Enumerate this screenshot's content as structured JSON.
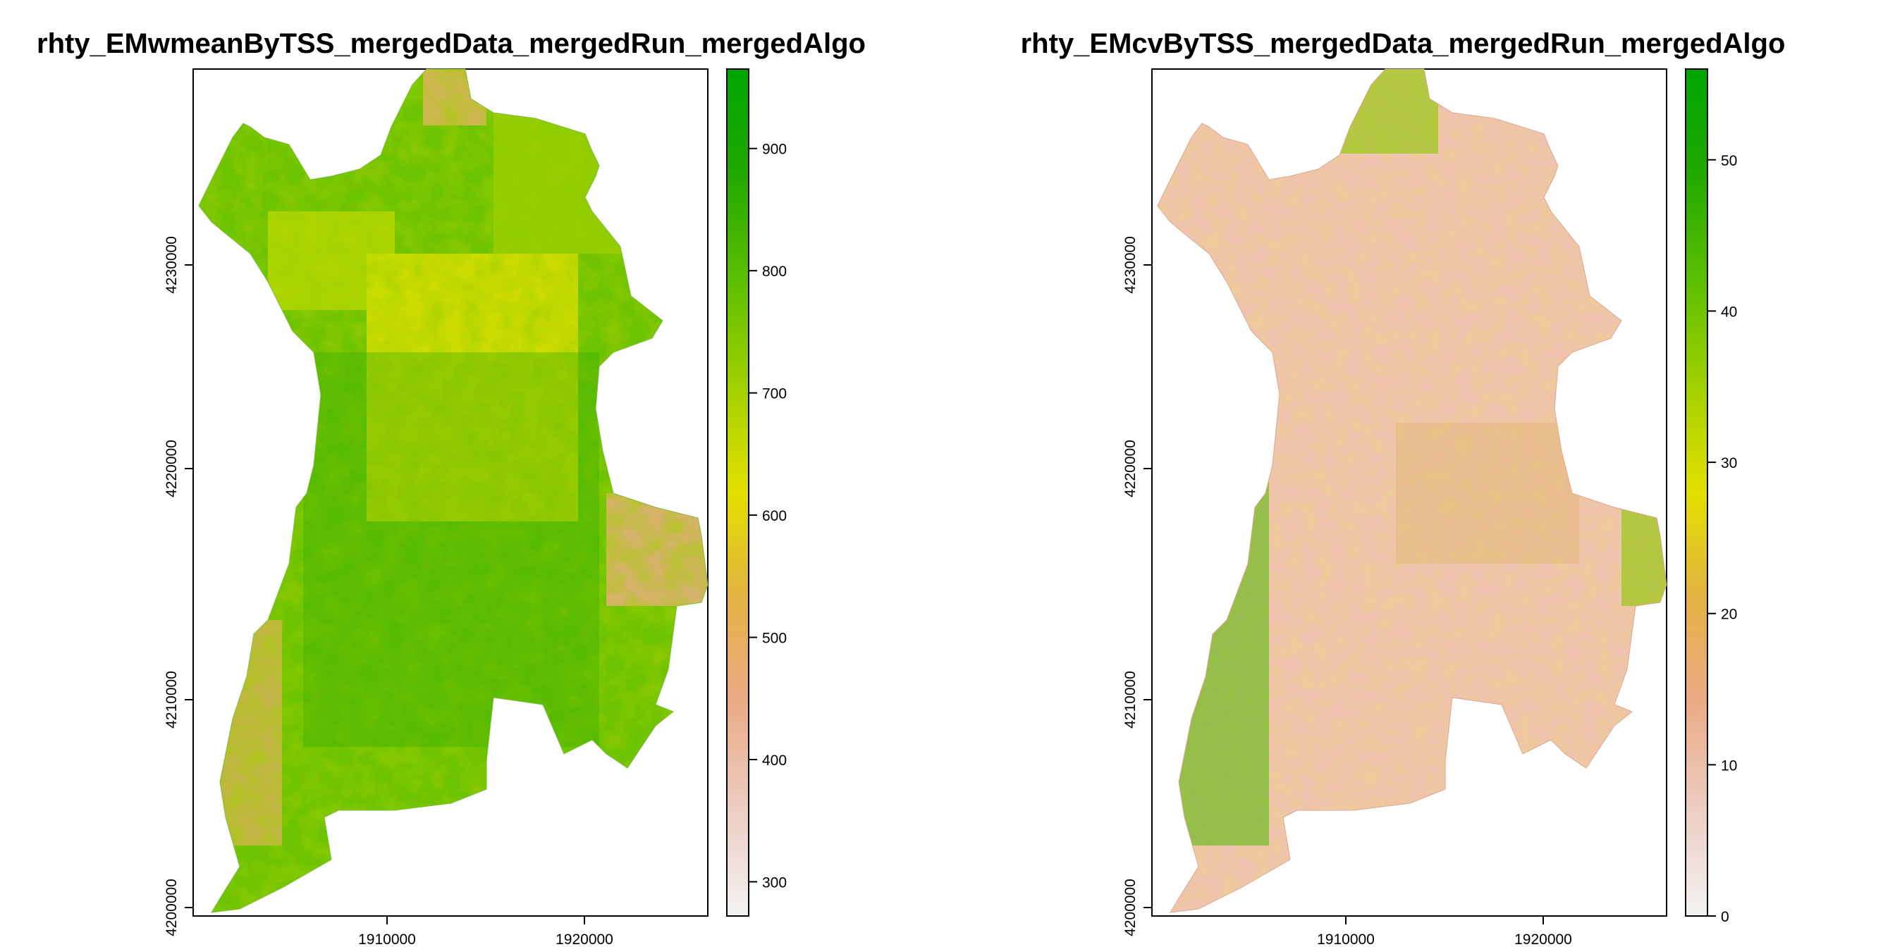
{
  "panels": [
    {
      "title": "rhty_EMwmeanByTSS_mergedData_mergedRun_mergedAlgo",
      "x_ticks": [
        "1910000",
        "1920000"
      ],
      "y_ticks": [
        "4200000",
        "4210000",
        "4220000",
        "4230000"
      ],
      "legend_ticks": [
        "300",
        "400",
        "500",
        "600",
        "700",
        "800",
        "900"
      ],
      "legend_range": [
        272,
        965
      ],
      "palette": [
        "#f2f2f2",
        "#ecc9bb",
        "#eaa982",
        "#e2b33f",
        "#e3df00",
        "#a4d100",
        "#5cbf00",
        "#1fa800",
        "#00a600"
      ],
      "map_tint": "green"
    },
    {
      "title": "rhty_EMcvByTSS_mergedData_mergedRun_mergedAlgo",
      "x_ticks": [
        "1910000",
        "1920000"
      ],
      "y_ticks": [
        "4200000",
        "4210000",
        "4220000",
        "4230000"
      ],
      "legend_ticks": [
        "0",
        "10",
        "20",
        "30",
        "40",
        "50"
      ],
      "legend_range": [
        0,
        56
      ],
      "palette": [
        "#f2f2f2",
        "#ecc9bb",
        "#eaa982",
        "#e2b33f",
        "#e3df00",
        "#a4d100",
        "#5cbf00",
        "#1fa800",
        "#00a600"
      ],
      "map_tint": "salmon"
    }
  ]
}
